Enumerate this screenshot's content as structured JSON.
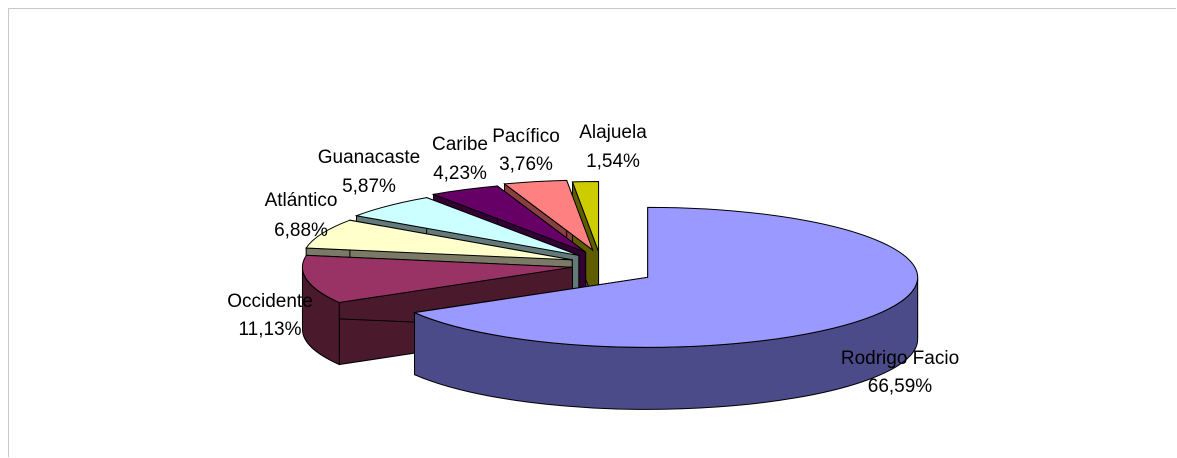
{
  "chart_data": {
    "type": "pie",
    "style": "3d-exploded",
    "legend": "none",
    "slices": [
      {
        "label": "Rodrigo Facio",
        "value": 66.59,
        "value_text": "66,59%",
        "top_color": "#9999ff",
        "side_color": "#4b4b8a"
      },
      {
        "label": "Occidente",
        "value": 11.13,
        "value_text": "11,13%",
        "top_color": "#993366",
        "side_color": "#4a1a2c"
      },
      {
        "label": "Atlántico",
        "value": 6.88,
        "value_text": "6,88%",
        "top_color": "#ffffcc",
        "side_color": "#7a7a66"
      },
      {
        "label": "Guanacaste",
        "value": 5.87,
        "value_text": "5,87%",
        "top_color": "#ccffff",
        "side_color": "#647a7a"
      },
      {
        "label": "Caribe",
        "value": 4.23,
        "value_text": "4,23%",
        "top_color": "#660066",
        "side_color": "#330033"
      },
      {
        "label": "Pacífico",
        "value": 3.76,
        "value_text": "3,76%",
        "top_color": "#ff8080",
        "side_color": "#8a4040"
      },
      {
        "label": "Alajuela",
        "value": 1.54,
        "value_text": "1,54%",
        "top_color": "#cccc00",
        "side_color": "#5e5e00"
      }
    ]
  }
}
